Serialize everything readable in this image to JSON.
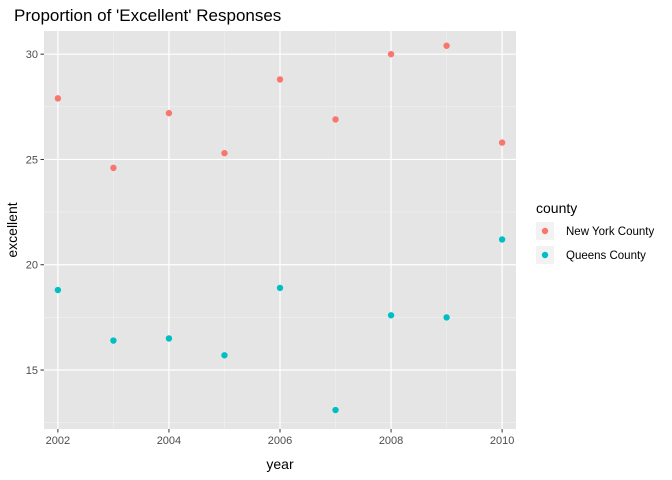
{
  "chart_data": {
    "type": "scatter",
    "title": "Proportion of 'Excellent' Responses",
    "xlabel": "year",
    "ylabel": "excellent",
    "xlim": [
      2001.75,
      2010.25
    ],
    "ylim": [
      12.2,
      31.1
    ],
    "x_ticks": [
      2002,
      2004,
      2006,
      2008,
      2010
    ],
    "y_ticks": [
      15,
      20,
      25,
      30
    ],
    "grid": true,
    "panel_background": "#e5e5e5",
    "legend": {
      "title": "county",
      "position": "right"
    },
    "series": [
      {
        "name": "New York County",
        "color": "#f8766d",
        "x": [
          2002,
          2003,
          2004,
          2005,
          2006,
          2007,
          2008,
          2009,
          2010
        ],
        "y": [
          27.9,
          24.6,
          27.2,
          25.3,
          28.8,
          26.9,
          30.0,
          30.4,
          25.8
        ]
      },
      {
        "name": "Queens County",
        "color": "#00bfc4",
        "x": [
          2002,
          2003,
          2004,
          2005,
          2006,
          2007,
          2008,
          2009,
          2010
        ],
        "y": [
          18.8,
          16.4,
          16.5,
          15.7,
          18.9,
          13.1,
          17.6,
          17.5,
          21.2
        ]
      }
    ]
  }
}
